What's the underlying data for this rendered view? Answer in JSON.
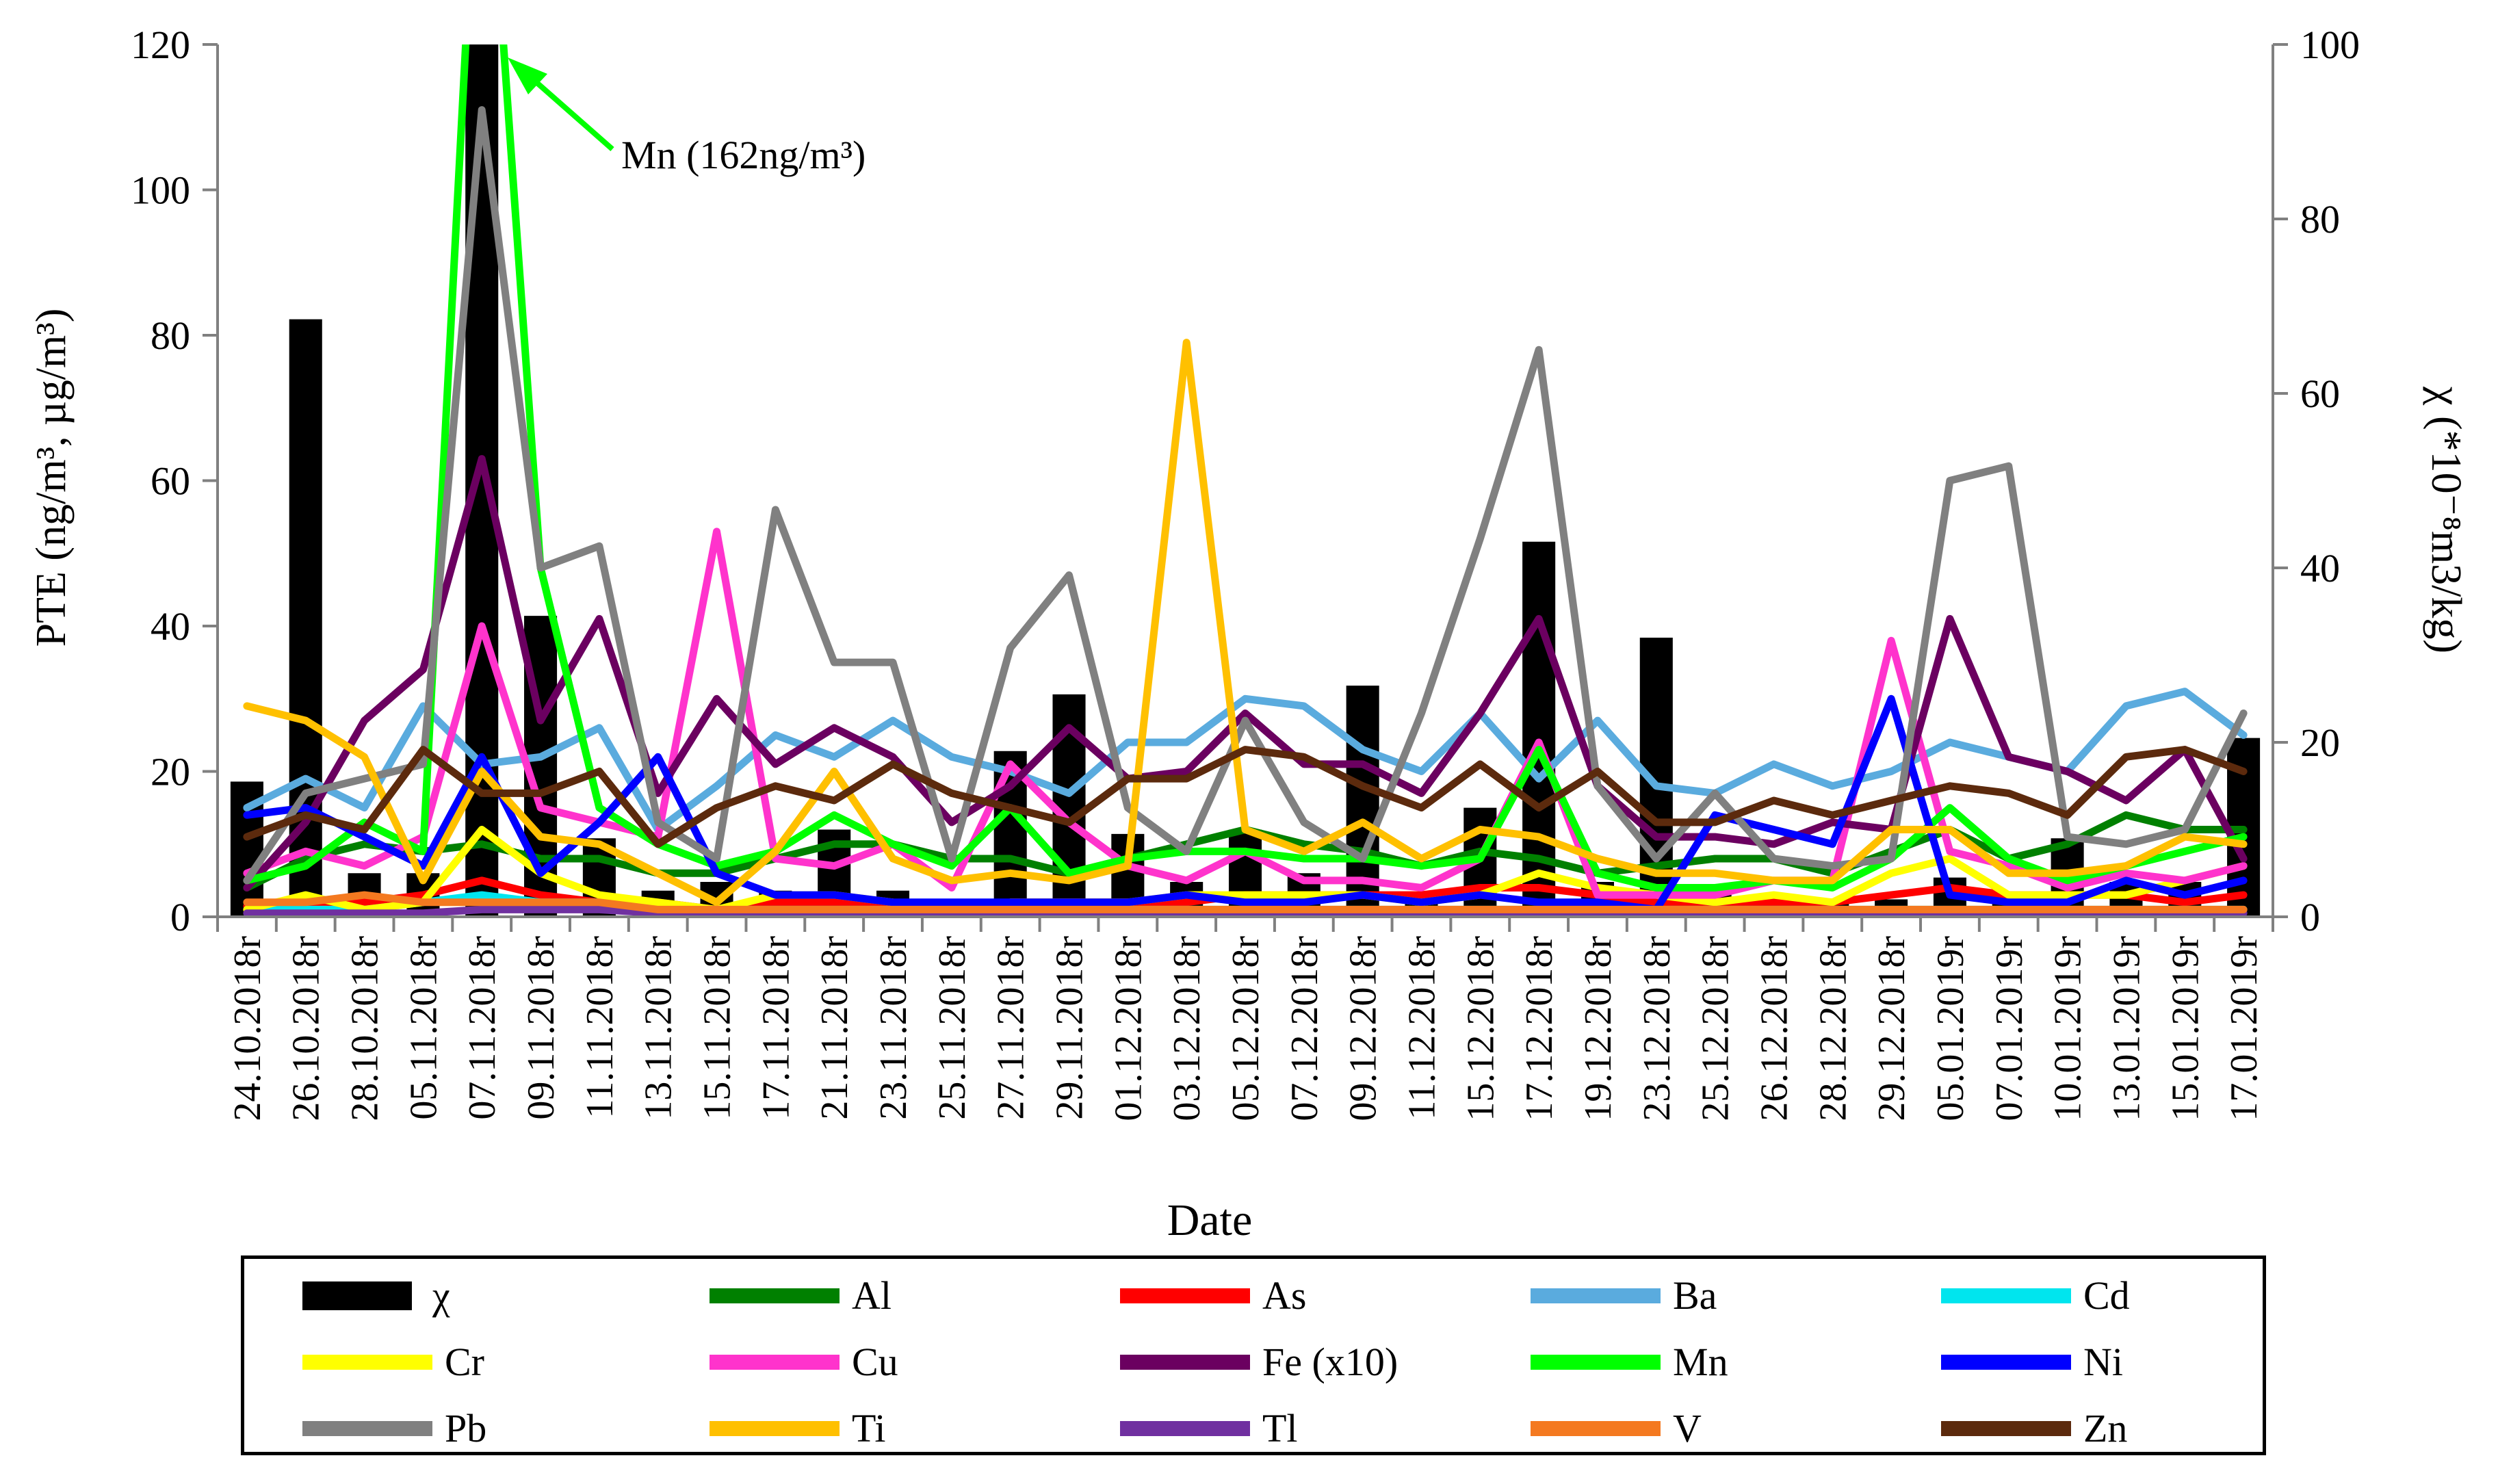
{
  "chart_data": {
    "type": "line",
    "title": "",
    "xlabel": "Date",
    "ylabel": "PTE (ng/m³, µg/m³)",
    "y2label": "χ (*10⁻⁸m3/kg)",
    "ylim": [
      0,
      120
    ],
    "y2lim": [
      0,
      100
    ],
    "yticks": [
      0,
      20,
      40,
      60,
      80,
      100,
      120
    ],
    "y2ticks": [
      0,
      20,
      40,
      60,
      80,
      100
    ],
    "categories": [
      "24.10.2018r",
      "26.10.2018r",
      "28.10.2018r",
      "05.11.2018r",
      "07.11.2018r",
      "09.11.2018r",
      "11.11.2018r",
      "13.11.2018r",
      "15.11.2018r",
      "17.11.2018r",
      "21.11.2018r",
      "23.11.2018r",
      "25.11.2018r",
      "27.11.2018r",
      "29.11.2018r",
      "01.12.2018r",
      "03.12.2018r",
      "05.12.2018r",
      "07.12.2018r",
      "09.12.2018r",
      "11.12.2018r",
      "15.12.2018r",
      "17.12.2018r",
      "19.12.2018r",
      "23.12.2018r",
      "25.12.2018r",
      "26.12.2018r",
      "28.12.2018r",
      "29.12.2018r",
      "05.01.2019r",
      "07.01.2019r",
      "10.01.2019r",
      "13.01.2019r",
      "15.01.2019r",
      "17.01.2019r"
    ],
    "bars": {
      "name": "χ",
      "axis": "right",
      "color": "#000000",
      "values": [
        15.5,
        68.5,
        5,
        5,
        100,
        34.5,
        9,
        3,
        4,
        3,
        10,
        3,
        1,
        19,
        25.5,
        9.5,
        4,
        10,
        5,
        26.5,
        2,
        12.5,
        43,
        4,
        32,
        3,
        2,
        1.5,
        2,
        4.5,
        2,
        9,
        4,
        4,
        20.5
      ]
    },
    "series": [
      {
        "name": "Al",
        "color": "#008000",
        "values": [
          4,
          8,
          10,
          9,
          10,
          8,
          8,
          6,
          6,
          8,
          10,
          10,
          8,
          8,
          6,
          8,
          10,
          12,
          10,
          9,
          7,
          9,
          8,
          6,
          7,
          8,
          8,
          6,
          9,
          12,
          8,
          10,
          14,
          12,
          12
        ]
      },
      {
        "name": "As",
        "color": "#ff0000",
        "values": [
          1.5,
          2,
          2,
          3,
          5,
          3,
          2,
          2,
          1,
          2,
          2,
          2,
          1,
          2,
          2,
          2,
          2,
          3,
          3,
          3,
          3,
          4,
          4,
          3,
          2,
          2,
          2,
          2,
          3,
          4,
          3,
          3,
          3,
          2,
          3
        ]
      },
      {
        "name": "Ba",
        "color": "#5aabde",
        "values": [
          15,
          19,
          15,
          29,
          21,
          22,
          26,
          12,
          18,
          25,
          22,
          27,
          22,
          20,
          17,
          24,
          24,
          30,
          29,
          23,
          20,
          28,
          19,
          27,
          18,
          17,
          21,
          18,
          20,
          24,
          22,
          20,
          29,
          31,
          25
        ]
      },
      {
        "name": "Cd",
        "color": "#00e5ee",
        "values": [
          1,
          1,
          1,
          2,
          3,
          2,
          2,
          1,
          1,
          1,
          1,
          1,
          1,
          1,
          1,
          1,
          1,
          1,
          1,
          1,
          1,
          1,
          1,
          1,
          1,
          1,
          1,
          1,
          1,
          1,
          1,
          1,
          1,
          1,
          1
        ]
      },
      {
        "name": "Cr",
        "color": "#ffff00",
        "values": [
          1,
          3,
          1,
          2,
          12,
          6,
          3,
          2,
          1,
          3,
          3,
          2,
          1,
          2,
          2,
          2,
          3,
          3,
          3,
          3,
          2,
          3,
          6,
          4,
          3,
          2,
          3,
          2,
          6,
          8,
          3,
          3,
          3,
          5,
          7
        ]
      },
      {
        "name": "Cu",
        "color": "#ff33cc",
        "values": [
          6,
          9,
          7,
          11,
          40,
          15,
          13,
          11,
          53,
          8,
          7,
          10,
          4,
          21,
          13,
          7,
          5,
          9,
          5,
          5,
          4,
          8,
          24,
          3,
          3,
          3,
          5,
          5,
          38,
          9,
          7,
          4,
          6,
          5,
          7
        ]
      },
      {
        "name": "Fe (x10)",
        "color": "#6b0060",
        "values": [
          4,
          13,
          27,
          34,
          63,
          27,
          41,
          17,
          30,
          21,
          26,
          22,
          13,
          18,
          26,
          19,
          20,
          28,
          21,
          21,
          17,
          28,
          41,
          18,
          11,
          11,
          10,
          13,
          12,
          41,
          22,
          20,
          16,
          23,
          8
        ]
      },
      {
        "name": "Mn",
        "color": "#00ff00",
        "values": [
          5,
          7,
          13,
          9,
          162,
          48,
          15,
          10,
          7,
          9,
          14,
          10,
          7,
          15,
          6,
          8,
          9,
          9,
          8,
          8,
          7,
          8,
          23,
          6,
          4,
          4,
          5,
          4,
          8,
          15,
          8,
          5,
          7,
          9,
          11
        ]
      },
      {
        "name": "Ni",
        "color": "#0000ff",
        "values": [
          14,
          15,
          11,
          7,
          22,
          6,
          13,
          22,
          6,
          3,
          3,
          2,
          2,
          2,
          2,
          2,
          3,
          2,
          2,
          3,
          2,
          3,
          2,
          2,
          1,
          14,
          12,
          10,
          30,
          3,
          2,
          2,
          5,
          3,
          5
        ]
      },
      {
        "name": "Pb",
        "color": "#808080",
        "values": [
          5,
          17,
          19,
          21,
          111,
          48,
          51,
          13,
          8,
          56,
          35,
          35,
          8,
          37,
          47,
          15,
          9,
          27,
          13,
          8,
          28,
          52,
          78,
          18,
          8,
          17,
          8,
          7,
          8,
          60,
          62,
          11,
          10,
          12,
          28
        ]
      },
      {
        "name": "Ti",
        "color": "#ffc000",
        "values": [
          29,
          27,
          22,
          5,
          20,
          11,
          10,
          6,
          2,
          9,
          20,
          8,
          5,
          6,
          5,
          7,
          79,
          12,
          9,
          13,
          8,
          12,
          11,
          8,
          6,
          6,
          5,
          5,
          12,
          12,
          6,
          6,
          7,
          11,
          10
        ]
      },
      {
        "name": "Tl",
        "color": "#7030a0",
        "values": [
          0.5,
          0.5,
          0.5,
          0.5,
          1,
          1,
          1,
          0.5,
          0.5,
          0.5,
          0.5,
          0.5,
          0.5,
          0.5,
          0.5,
          0.5,
          0.5,
          0.5,
          0.5,
          0.5,
          0.5,
          0.5,
          0.5,
          0.5,
          0.5,
          0.5,
          0.5,
          0.5,
          0.5,
          0.5,
          0.5,
          0.5,
          0.5,
          0.5,
          0.5
        ]
      },
      {
        "name": "V",
        "color": "#f47920",
        "values": [
          2,
          2,
          3,
          2,
          2,
          2,
          2,
          1,
          1,
          1,
          1,
          1,
          1,
          1,
          1,
          1,
          1,
          1,
          1,
          1,
          1,
          1,
          1,
          1,
          1,
          1,
          1,
          1,
          1,
          1,
          1,
          1,
          1,
          1,
          1
        ]
      },
      {
        "name": "Zn",
        "color": "#5c2a0d",
        "values": [
          11,
          14,
          12,
          23,
          17,
          17,
          20,
          10,
          15,
          18,
          16,
          21,
          17,
          15,
          13,
          19,
          19,
          23,
          22,
          18,
          15,
          21,
          15,
          20,
          13,
          13,
          16,
          14,
          16,
          18,
          17,
          14,
          22,
          23,
          20
        ]
      }
    ],
    "annotation": "Mn (162ng/m³)",
    "legend_position": "bottom"
  },
  "legend": {
    "items": [
      {
        "label": "χ",
        "color": "#000000",
        "kind": "bar"
      },
      {
        "label": "Al",
        "color": "#008000",
        "kind": "line"
      },
      {
        "label": "As",
        "color": "#ff0000",
        "kind": "line"
      },
      {
        "label": "Ba",
        "color": "#5aabde",
        "kind": "line"
      },
      {
        "label": "Cd",
        "color": "#00e5ee",
        "kind": "line"
      },
      {
        "label": "Cr",
        "color": "#ffff00",
        "kind": "line"
      },
      {
        "label": "Cu",
        "color": "#ff33cc",
        "kind": "line"
      },
      {
        "label": "Fe (x10)",
        "color": "#6b0060",
        "kind": "line"
      },
      {
        "label": "Mn",
        "color": "#00ff00",
        "kind": "line"
      },
      {
        "label": "Ni",
        "color": "#0000ff",
        "kind": "line"
      },
      {
        "label": "Pb",
        "color": "#808080",
        "kind": "line"
      },
      {
        "label": "Ti",
        "color": "#ffc000",
        "kind": "line"
      },
      {
        "label": "Tl",
        "color": "#7030a0",
        "kind": "line"
      },
      {
        "label": "V",
        "color": "#f47920",
        "kind": "line"
      },
      {
        "label": "Zn",
        "color": "#5c2a0d",
        "kind": "line"
      }
    ]
  }
}
